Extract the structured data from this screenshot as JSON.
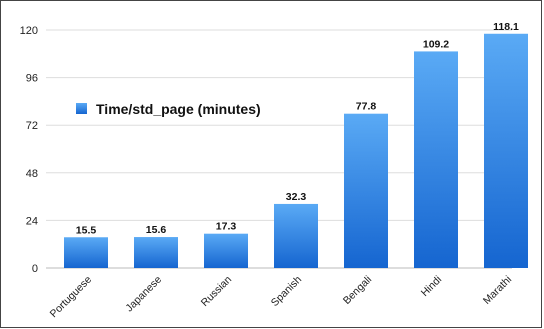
{
  "chart_data": {
    "type": "bar",
    "categories": [
      "Portuguese",
      "Japanese",
      "Russian",
      "Spanish",
      "Bengali",
      "Hindi",
      "Marathi"
    ],
    "series": [
      {
        "name": "Time/std_page (minutes)",
        "values": [
          15.5,
          15.6,
          17.3,
          32.3,
          77.8,
          109.2,
          118.1
        ]
      }
    ],
    "data_labels": [
      "15.5",
      "15.6",
      "17.3",
      "32.3",
      "77.8",
      "109.2",
      "118.1"
    ],
    "yticks": [
      0,
      24,
      48,
      72,
      96,
      120
    ],
    "ylim": [
      0,
      120
    ],
    "grid": true,
    "legend_position": "upper-left",
    "colors": {
      "bar_top": "#5aaaf5",
      "bar_bottom": "#1565d0",
      "grid": "#dddddd",
      "frame": "#444444"
    }
  }
}
